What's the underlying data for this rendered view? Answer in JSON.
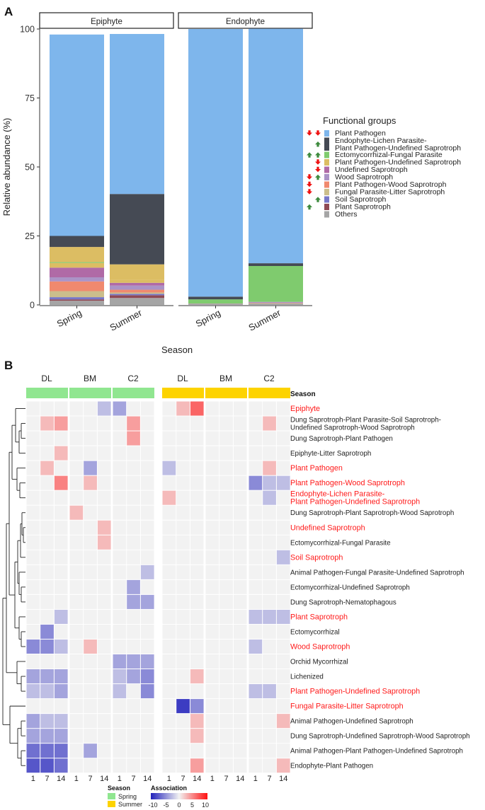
{
  "panel_a": {
    "label": "A",
    "facets": [
      "Epiphyte",
      "Endophyte"
    ],
    "ylabel": "Relative abundance (%)",
    "xlabel": "Season",
    "legend_title": "Functional groups",
    "groups": [
      {
        "name": "Plant Pathogen",
        "color": "#7eb6ec",
        "arrows": [
          "down",
          "down"
        ]
      },
      {
        "name": "Endophyte-Lichen Parasite-\nPlant Pathogen-Undefined Saprotroph",
        "color": "#454a54",
        "arrows": [
          "",
          "up"
        ]
      },
      {
        "name": "Ectomycorrhizal-Fungal Parasite",
        "color": "#7fcb6e",
        "arrows": [
          "up",
          "up"
        ]
      },
      {
        "name": "Plant Pathogen-Undefined Saprotroph",
        "color": "#dcbd63",
        "arrows": [
          "",
          "down"
        ]
      },
      {
        "name": "Undefined Saprotroph",
        "color": "#b06aa6",
        "arrows": [
          "",
          "down"
        ]
      },
      {
        "name": "Wood Saprotroph",
        "color": "#ab93c6",
        "arrows": [
          "down",
          "up"
        ]
      },
      {
        "name": "Plant Pathogen-Wood Saprotroph",
        "color": "#f0896e",
        "arrows": [
          "down",
          ""
        ]
      },
      {
        "name": "Fungal Parasite-Litter Saprotroph",
        "color": "#cbbe8c",
        "arrows": [
          "down",
          ""
        ]
      },
      {
        "name": "Soil Saprotroph",
        "color": "#7777c8",
        "arrows": [
          "",
          "up"
        ]
      },
      {
        "name": "Plant Saprotroph",
        "color": "#8f4a55",
        "arrows": [
          "up",
          ""
        ]
      },
      {
        "name": "Others",
        "color": "#a5a5a5",
        "arrows": [
          "",
          ""
        ]
      }
    ]
  },
  "panel_b": {
    "label": "B",
    "group_labels": [
      "DL",
      "BM",
      "C2"
    ],
    "season_title": "Season",
    "legend_season_title": "Season",
    "legend_seasons": [
      "Spring",
      "Summer"
    ],
    "legend_assoc_title": "Association",
    "colors": {
      "spring": "#90e690",
      "summer": "#fdd300",
      "neg": "#2222bb",
      "pos": "#ff1111",
      "zero": "#f2f2f2",
      "red_label": "#ff1a1a"
    },
    "rows": [
      {
        "name": "Epiphyte",
        "red": true
      },
      {
        "name": "Dung Saprotroph-Plant Parasite-Soil Saprotroph-\nUndefined Saprotroph-Wood Saprotroph",
        "red": false
      },
      {
        "name": "Dung Saprotroph-Plant Pathogen",
        "red": false
      },
      {
        "name": "Epiphyte-Litter Saprotroph",
        "red": false
      },
      {
        "name": "Plant Pathogen",
        "red": true
      },
      {
        "name": "Plant Pathogen-Wood Saprotroph",
        "red": true
      },
      {
        "name": "Endophyte-Lichen Parasite-\nPlant Pathogen-Undefined Saprotroph",
        "red": true
      },
      {
        "name": "Dung Saprotroph-Plant Saprotroph-Wood Saprotroph",
        "red": false
      },
      {
        "name": "Undefined Saprotroph",
        "red": true
      },
      {
        "name": "Ectomycorrhizal-Fungal Parasite",
        "red": false
      },
      {
        "name": "Soil Saprotroph",
        "red": true
      },
      {
        "name": "Animal Pathogen-Fungal Parasite-Undefined Saprotroph",
        "red": false
      },
      {
        "name": "Ectomycorrhizal-Undefined Saprotroph",
        "red": false
      },
      {
        "name": "Dung Saprotroph-Nematophagous",
        "red": false
      },
      {
        "name": "Plant Saprotroph",
        "red": true
      },
      {
        "name": "Ectomycorrhizal",
        "red": false
      },
      {
        "name": "Wood Saprotroph",
        "red": true
      },
      {
        "name": "Orchid Mycorrhizal",
        "red": false
      },
      {
        "name": "Lichenized",
        "red": false
      },
      {
        "name": "Plant Pathogen-Undefined Saprotroph",
        "red": true
      },
      {
        "name": "Fungal Parasite-Litter Saprotroph",
        "red": true
      },
      {
        "name": "Animal Pathogen-Undefined Saprotroph",
        "red": false
      },
      {
        "name": "Dung Saprotroph-Undefined Saprotroph-Wood Saprotroph",
        "red": false
      },
      {
        "name": "Animal Pathogen-Plant Pathogen-Undefined Saprotroph",
        "red": false
      },
      {
        "name": "Endophyte-Plant Pathogen",
        "red": false
      }
    ]
  },
  "chart_data": [
    {
      "type": "bar",
      "title": "",
      "stacked": true,
      "facets": [
        "Epiphyte",
        "Endophyte"
      ],
      "categories": [
        "Spring",
        "Summer"
      ],
      "xlabel": "Season",
      "ylabel": "Relative abundance (%)",
      "ylim": [
        0,
        100
      ],
      "yticks": [
        0,
        25,
        50,
        75,
        100
      ],
      "legend_title": "Functional groups",
      "series": [
        {
          "name": "Others",
          "values": {
            "Epiphyte": [
              1.5,
              2.5
            ],
            "Endophyte": [
              0.3,
              0.5
            ]
          }
        },
        {
          "name": "Plant Saprotroph",
          "values": {
            "Epiphyte": [
              0.5,
              1.0
            ],
            "Endophyte": [
              0.0,
              0.0
            ]
          }
        },
        {
          "name": "Soil Saprotroph",
          "values": {
            "Epiphyte": [
              0.8,
              0.5
            ],
            "Endophyte": [
              0.0,
              0.0
            ]
          }
        },
        {
          "name": "Fungal Parasite-Litter Saprotroph",
          "values": {
            "Epiphyte": [
              2.2,
              0.5
            ],
            "Endophyte": [
              0.1,
              0.1
            ]
          }
        },
        {
          "name": "Plant Pathogen-Wood Saprotroph",
          "values": {
            "Epiphyte": [
              3.5,
              1.0
            ],
            "Endophyte": [
              0.0,
              0.1
            ]
          }
        },
        {
          "name": "Wood Saprotroph",
          "values": {
            "Epiphyte": [
              1.5,
              1.5
            ],
            "Endophyte": [
              0.1,
              0.4
            ]
          }
        },
        {
          "name": "Undefined Saprotroph",
          "values": {
            "Epiphyte": [
              3.5,
              1.0
            ],
            "Endophyte": [
              0.0,
              0.0
            ]
          }
        },
        {
          "name": "Plant Pathogen-Undefined Saprotroph",
          "values": {
            "Epiphyte": [
              1.7,
              1.0
            ],
            "Endophyte": [
              0.0,
              0.0
            ]
          }
        },
        {
          "name": "Ectomycorrhizal-Fungal Parasite",
          "values": {
            "Epiphyte": [
              0.3,
              0.0
            ],
            "Endophyte": [
              1.5,
              13.0
            ]
          }
        },
        {
          "name": "Plant Pathogen-Undefined Saprotroph",
          "values": {
            "Epiphyte": [
              5.5,
              5.7
            ],
            "Endophyte": [
              0.0,
              0.0
            ]
          }
        },
        {
          "name": "Endophyte-Lichen Parasite-Plant Pathogen-Undefined Saprotroph",
          "values": {
            "Epiphyte": [
              4.0,
              25.5
            ],
            "Endophyte": [
              1.0,
              1.0
            ]
          }
        },
        {
          "name": "Plant Pathogen",
          "values": {
            "Epiphyte": [
              73.0,
              58.0
            ],
            "Endophyte": [
              97.0,
              85.0
            ]
          }
        }
      ]
    },
    {
      "type": "heatmap",
      "title": "",
      "legend_title": "Association",
      "color_range": [
        -10,
        10
      ],
      "color_ticks": [
        -10,
        -5,
        0,
        5,
        10
      ],
      "season_blocks": [
        "Spring",
        "Summer"
      ],
      "groups": [
        "DL",
        "BM",
        "C2"
      ],
      "x_ticks": [
        "1",
        "7",
        "14"
      ],
      "values": [
        [
          0,
          0,
          0,
          0,
          0,
          -2,
          -3,
          0,
          0,
          0,
          2,
          5,
          0,
          0,
          0,
          0,
          0,
          0
        ],
        [
          0,
          2,
          3,
          0,
          0,
          0,
          0,
          3,
          0,
          0,
          0,
          0,
          0,
          0,
          0,
          0,
          2,
          0
        ],
        [
          0,
          0,
          0,
          0,
          0,
          0,
          0,
          3,
          0,
          0,
          0,
          0,
          0,
          0,
          0,
          0,
          0,
          0
        ],
        [
          0,
          0,
          2,
          0,
          0,
          0,
          0,
          0,
          0,
          0,
          0,
          0,
          0,
          0,
          0,
          0,
          0,
          0
        ],
        [
          0,
          2,
          0,
          0,
          -3,
          0,
          0,
          0,
          0,
          -2,
          0,
          0,
          0,
          0,
          0,
          0,
          2,
          0
        ],
        [
          0,
          0,
          4,
          0,
          2,
          0,
          0,
          0,
          0,
          0,
          0,
          0,
          0,
          0,
          0,
          -4,
          -2,
          -2
        ],
        [
          0,
          0,
          0,
          0,
          0,
          0,
          0,
          0,
          0,
          2,
          0,
          0,
          0,
          0,
          0,
          0,
          -2,
          0
        ],
        [
          0,
          0,
          0,
          2,
          0,
          0,
          0,
          0,
          0,
          0,
          0,
          0,
          0,
          0,
          0,
          0,
          0,
          0
        ],
        [
          0,
          0,
          0,
          0,
          0,
          2,
          0,
          0,
          0,
          0,
          0,
          0,
          0,
          0,
          0,
          0,
          0,
          0
        ],
        [
          0,
          0,
          0,
          0,
          0,
          2,
          0,
          0,
          0,
          0,
          0,
          0,
          0,
          0,
          0,
          0,
          0,
          0
        ],
        [
          0,
          0,
          0,
          0,
          0,
          0,
          0,
          0,
          0,
          0,
          0,
          0,
          0,
          0,
          0,
          0,
          0,
          -2
        ],
        [
          0,
          0,
          0,
          0,
          0,
          0,
          0,
          0,
          -2,
          0,
          0,
          0,
          0,
          0,
          0,
          0,
          0,
          0
        ],
        [
          0,
          0,
          0,
          0,
          0,
          0,
          0,
          -3,
          0,
          0,
          0,
          0,
          0,
          0,
          0,
          0,
          0,
          0
        ],
        [
          0,
          0,
          0,
          0,
          0,
          0,
          0,
          -3,
          -3,
          0,
          0,
          0,
          0,
          0,
          0,
          0,
          0,
          0
        ],
        [
          0,
          0,
          -2,
          0,
          0,
          0,
          0,
          0,
          0,
          0,
          0,
          0,
          0,
          0,
          0,
          -2,
          -2,
          -2
        ],
        [
          0,
          -4,
          0,
          0,
          0,
          0,
          0,
          0,
          0,
          0,
          0,
          0,
          0,
          0,
          0,
          0,
          0,
          0
        ],
        [
          -4,
          -4,
          -2,
          0,
          2,
          0,
          0,
          0,
          0,
          0,
          0,
          0,
          0,
          0,
          0,
          -2,
          0,
          0
        ],
        [
          0,
          0,
          0,
          0,
          0,
          0,
          -3,
          -3,
          -3,
          0,
          0,
          0,
          0,
          0,
          0,
          0,
          0,
          0
        ],
        [
          -3,
          -3,
          -3,
          0,
          0,
          0,
          -2,
          -3,
          -4,
          0,
          0,
          2,
          0,
          0,
          0,
          0,
          0,
          0
        ],
        [
          -2,
          -2,
          -3,
          0,
          0,
          0,
          -2,
          0,
          -4,
          0,
          0,
          0,
          0,
          0,
          0,
          -2,
          -2,
          0
        ],
        [
          0,
          0,
          0,
          0,
          0,
          0,
          0,
          0,
          0,
          0,
          -7,
          -4,
          0,
          0,
          0,
          0,
          0,
          0
        ],
        [
          -3,
          -2,
          -2,
          0,
          0,
          0,
          0,
          0,
          0,
          0,
          0,
          2,
          0,
          0,
          0,
          0,
          0,
          2
        ],
        [
          -3,
          -3,
          -3,
          0,
          0,
          0,
          0,
          0,
          0,
          0,
          0,
          2,
          0,
          0,
          0,
          0,
          0,
          0
        ],
        [
          -5,
          -5,
          -5,
          0,
          -3,
          0,
          0,
          0,
          0,
          0,
          0,
          0,
          0,
          0,
          0,
          0,
          0,
          0
        ],
        [
          -6,
          -6,
          -5,
          0,
          0,
          0,
          0,
          0,
          0,
          0,
          0,
          3,
          0,
          0,
          0,
          0,
          0,
          2
        ]
      ]
    }
  ]
}
